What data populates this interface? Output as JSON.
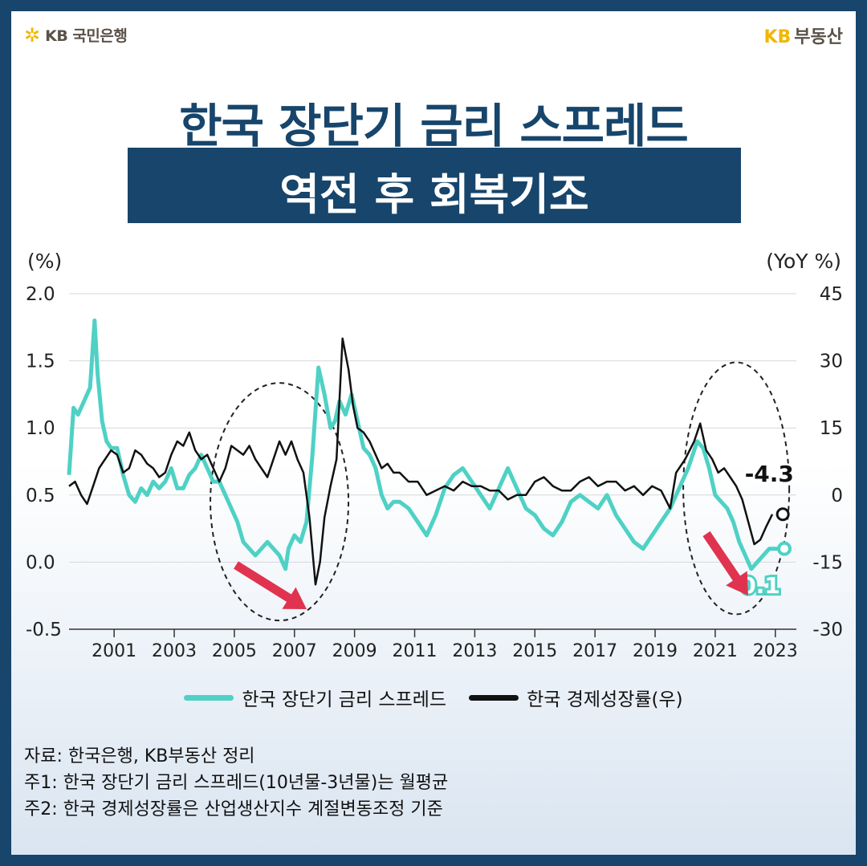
{
  "header": {
    "logo_left": "KB 국민은행",
    "logo_right_kb": "KB",
    "logo_right_text": "부동산"
  },
  "title": {
    "line1": "한국 장단기 금리 스프레드",
    "line2": "역전 후 회복기조"
  },
  "colors": {
    "navy": "#17456b",
    "spread": "#4fd1c5",
    "growth": "#111111",
    "arrow": "#e0334f",
    "kb_yellow": "#f2b600"
  },
  "chart_data": {
    "type": "line",
    "title": "",
    "y_left_label": "(%)",
    "y_right_label": "(YoY %)",
    "y_left_lim": [
      -0.5,
      2.0
    ],
    "y_left_ticks": [
      "2.0",
      "1.5",
      "1.0",
      "0.5",
      "0.0",
      "-0.5"
    ],
    "y_right_lim": [
      -30,
      45
    ],
    "y_right_ticks": [
      "45",
      "30",
      "15",
      "0",
      "-15",
      "-30"
    ],
    "x_lim": [
      2000.0,
      2024.2
    ],
    "x_ticks": [
      "2001",
      "2003",
      "2005",
      "2007",
      "2009",
      "2011",
      "2013",
      "2015",
      "2017",
      "2019",
      "2021",
      "2023"
    ],
    "grid": "horizontal",
    "series": [
      {
        "name": "한국 장단기 금리 스프레드",
        "axis": "left",
        "color": "#4fd1c5",
        "x": [
          2000.0,
          2000.15,
          2000.3,
          2000.5,
          2000.7,
          2000.85,
          2000.95,
          2001.1,
          2001.25,
          2001.4,
          2001.6,
          2001.8,
          2002.0,
          2002.2,
          2002.4,
          2002.6,
          2002.8,
          2003.0,
          2003.2,
          2003.4,
          2003.6,
          2003.8,
          2004.0,
          2004.2,
          2004.4,
          2004.6,
          2004.8,
          2005.0,
          2005.2,
          2005.4,
          2005.6,
          2005.8,
          2006.0,
          2006.2,
          2006.4,
          2006.6,
          2006.8,
          2007.0,
          2007.2,
          2007.3,
          2007.5,
          2007.7,
          2007.9,
          2008.1,
          2008.3,
          2008.5,
          2008.7,
          2008.85,
          2009.0,
          2009.2,
          2009.4,
          2009.6,
          2009.8,
          2010.0,
          2010.2,
          2010.4,
          2010.6,
          2010.8,
          2011.0,
          2011.3,
          2011.6,
          2011.9,
          2012.2,
          2012.5,
          2012.8,
          2013.1,
          2013.4,
          2013.7,
          2014.0,
          2014.3,
          2014.6,
          2014.9,
          2015.2,
          2015.5,
          2015.8,
          2016.1,
          2016.4,
          2016.7,
          2017.0,
          2017.3,
          2017.6,
          2017.9,
          2018.2,
          2018.5,
          2018.8,
          2019.1,
          2019.4,
          2019.7,
          2020.0,
          2020.3,
          2020.6,
          2020.9,
          2021.1,
          2021.3,
          2021.5,
          2021.7,
          2021.9,
          2022.1,
          2022.3,
          2022.5,
          2022.7,
          2022.9,
          2023.1,
          2023.3,
          2023.6
        ],
        "values": [
          0.65,
          1.15,
          1.1,
          1.2,
          1.3,
          1.8,
          1.4,
          1.05,
          0.9,
          0.85,
          0.85,
          0.65,
          0.5,
          0.45,
          0.55,
          0.5,
          0.6,
          0.55,
          0.6,
          0.7,
          0.55,
          0.55,
          0.65,
          0.7,
          0.8,
          0.7,
          0.6,
          0.6,
          0.5,
          0.4,
          0.3,
          0.15,
          0.1,
          0.05,
          0.1,
          0.15,
          0.1,
          0.05,
          -0.05,
          0.1,
          0.2,
          0.15,
          0.3,
          0.8,
          1.45,
          1.25,
          1.0,
          1.05,
          1.2,
          1.1,
          1.25,
          1.05,
          0.85,
          0.8,
          0.7,
          0.5,
          0.4,
          0.45,
          0.45,
          0.4,
          0.3,
          0.2,
          0.35,
          0.55,
          0.65,
          0.7,
          0.6,
          0.5,
          0.4,
          0.55,
          0.7,
          0.55,
          0.4,
          0.35,
          0.25,
          0.2,
          0.3,
          0.45,
          0.5,
          0.45,
          0.4,
          0.5,
          0.35,
          0.25,
          0.15,
          0.1,
          0.2,
          0.3,
          0.4,
          0.55,
          0.7,
          0.9,
          0.85,
          0.7,
          0.5,
          0.45,
          0.4,
          0.3,
          0.15,
          0.05,
          -0.05,
          0.0,
          0.05,
          0.1,
          0.1
        ]
      },
      {
        "name": "한국 경제성장률(우)",
        "axis": "right",
        "color": "#111111",
        "x": [
          2000.0,
          2000.2,
          2000.4,
          2000.6,
          2000.8,
          2001.0,
          2001.2,
          2001.4,
          2001.6,
          2001.8,
          2002.0,
          2002.2,
          2002.4,
          2002.6,
          2002.8,
          2003.0,
          2003.2,
          2003.4,
          2003.6,
          2003.8,
          2004.0,
          2004.2,
          2004.4,
          2004.6,
          2004.8,
          2005.0,
          2005.2,
          2005.4,
          2005.6,
          2005.8,
          2006.0,
          2006.2,
          2006.4,
          2006.6,
          2006.8,
          2007.0,
          2007.2,
          2007.4,
          2007.6,
          2007.8,
          2008.0,
          2008.2,
          2008.35,
          2008.5,
          2008.7,
          2008.9,
          2009.1,
          2009.3,
          2009.45,
          2009.6,
          2009.8,
          2010.0,
          2010.2,
          2010.4,
          2010.6,
          2010.8,
          2011.0,
          2011.3,
          2011.6,
          2011.9,
          2012.2,
          2012.5,
          2012.8,
          2013.1,
          2013.4,
          2013.7,
          2014.0,
          2014.3,
          2014.6,
          2014.9,
          2015.2,
          2015.5,
          2015.8,
          2016.1,
          2016.4,
          2016.7,
          2017.0,
          2017.3,
          2017.6,
          2017.9,
          2018.2,
          2018.5,
          2018.8,
          2019.1,
          2019.4,
          2019.7,
          2020.0,
          2020.2,
          2020.5,
          2020.8,
          2021.0,
          2021.2,
          2021.4,
          2021.6,
          2021.8,
          2022.0,
          2022.2,
          2022.4,
          2022.6,
          2022.8,
          2023.0,
          2023.2,
          2023.4
        ],
        "values": [
          2,
          3,
          0,
          -2,
          2,
          6,
          8,
          10,
          9,
          5,
          6,
          10,
          9,
          7,
          6,
          4,
          5,
          9,
          12,
          11,
          14,
          10,
          8,
          9,
          6,
          3,
          6,
          11,
          10,
          9,
          11,
          8,
          6,
          4,
          8,
          12,
          9,
          12,
          8,
          5,
          -5,
          -20,
          -15,
          -5,
          2,
          8,
          35,
          28,
          20,
          15,
          14,
          12,
          9,
          6,
          7,
          5,
          5,
          3,
          3,
          0,
          1,
          2,
          1,
          3,
          2,
          2,
          1,
          1,
          -1,
          0,
          0,
          3,
          4,
          2,
          1,
          1,
          3,
          4,
          2,
          3,
          3,
          1,
          2,
          0,
          2,
          1,
          -3,
          5,
          8,
          12,
          16,
          10,
          8,
          5,
          6,
          4,
          2,
          -1,
          -6,
          -11,
          -10,
          -7,
          -4.3
        ]
      }
    ],
    "annotations": {
      "spread_last": "0.1",
      "growth_last": "-4.3"
    }
  },
  "legend": {
    "spread": "한국 장단기 금리 스프레드",
    "growth": "한국 경제성장률(우)"
  },
  "notes": [
    "자료: 한국은행, KB부동산 정리",
    "주1: 한국 장단기 금리 스프레드(10년물-3년물)는 월평균",
    "주2: 한국 경제성장률은 산업생산지수 계절변동조정 기준"
  ]
}
